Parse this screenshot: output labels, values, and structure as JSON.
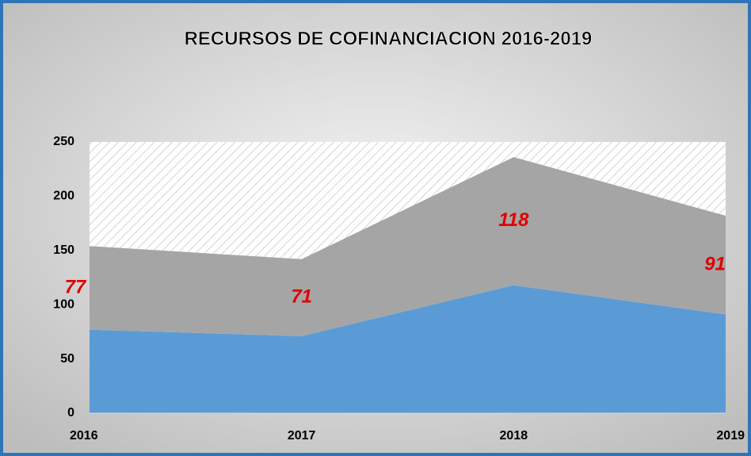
{
  "chart_data": {
    "type": "stacked_area",
    "title": "RECURSOS DE COFINANCIACION 2016-2019",
    "categories": [
      "2016",
      "2017",
      "2018",
      "2019"
    ],
    "series": [
      {
        "color": "#5b9bd5",
        "values": [
          77,
          71,
          118,
          91
        ]
      },
      {
        "color": "#a5a5a5",
        "values": [
          77,
          71,
          118,
          91
        ]
      }
    ],
    "ylim": [
      0,
      250
    ],
    "yticks": [
      0,
      50,
      100,
      150,
      200,
      250
    ],
    "data_label_color": "#e00000"
  }
}
